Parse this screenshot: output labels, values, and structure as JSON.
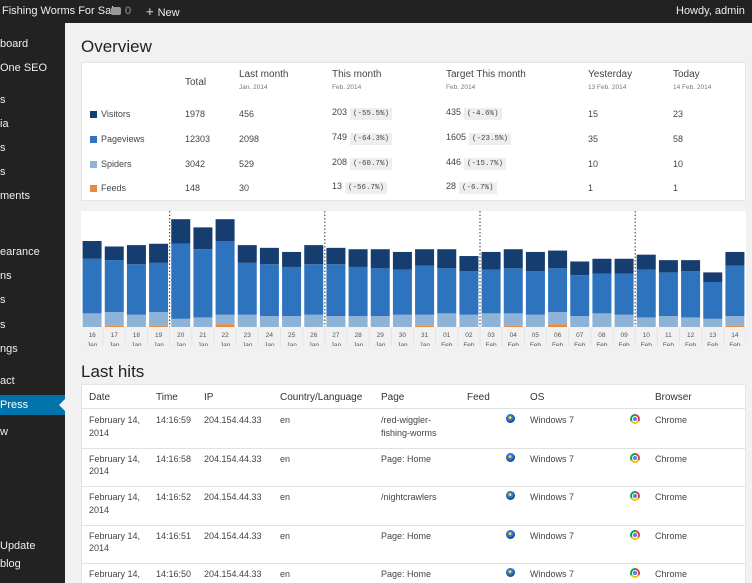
{
  "adminbar": {
    "site_name": "Fishing Worms For Sale",
    "comments_count": "0",
    "new_label": "New",
    "howdy": "Howdy, admin"
  },
  "sidebar": {
    "items": [
      "board",
      "One SEO",
      "s",
      "ia",
      "s",
      "s",
      "ments",
      "earance",
      "ns",
      "s",
      "s",
      "ngs",
      "act",
      "Press",
      "w",
      "Update",
      "blog"
    ]
  },
  "overview": {
    "title": "Overview",
    "columns": [
      {
        "label": "Total",
        "sub": ""
      },
      {
        "label": "Last month",
        "sub": "Jan. 2014"
      },
      {
        "label": "This month",
        "sub": "Feb. 2014"
      },
      {
        "label": "Target This month",
        "sub": "Feb. 2014"
      },
      {
        "label": "Yesterday",
        "sub": "13 Feb. 2014"
      },
      {
        "label": "Today",
        "sub": "14 Feb. 2014"
      }
    ],
    "rows": [
      {
        "label": "Visitors",
        "color": "#163d6f",
        "total": "1978",
        "last_month": "456",
        "this_month": "203",
        "this_pct": "(-55.5%)",
        "target": "435",
        "target_pct": "(-4.6%)",
        "yesterday": "15",
        "today": "23"
      },
      {
        "label": "Pageviews",
        "color": "#2d73bd",
        "total": "12303",
        "last_month": "2098",
        "this_month": "749",
        "this_pct": "(-64.3%)",
        "target": "1605",
        "target_pct": "(-23.5%)",
        "yesterday": "35",
        "today": "58"
      },
      {
        "label": "Spiders",
        "color": "#8fb3d7",
        "total": "3042",
        "last_month": "529",
        "this_month": "208",
        "this_pct": "(-60.7%)",
        "target": "446",
        "target_pct": "(-15.7%)",
        "yesterday": "10",
        "today": "10"
      },
      {
        "label": "Feeds",
        "color": "#e98b3a",
        "total": "148",
        "last_month": "30",
        "this_month": "13",
        "this_pct": "(-56.7%)",
        "target": "28",
        "target_pct": "(-6.7%)",
        "yesterday": "1",
        "today": "1"
      }
    ]
  },
  "chart_data": {
    "type": "bar",
    "stacked": true,
    "categories": [
      {
        "day": "16",
        "month": "Jan"
      },
      {
        "day": "17",
        "month": "Jan"
      },
      {
        "day": "18",
        "month": "Jan"
      },
      {
        "day": "19",
        "month": "Jan"
      },
      {
        "day": "20",
        "month": "Jan"
      },
      {
        "day": "21",
        "month": "Jan"
      },
      {
        "day": "22",
        "month": "Jan"
      },
      {
        "day": "23",
        "month": "Jan"
      },
      {
        "day": "24",
        "month": "Jan"
      },
      {
        "day": "25",
        "month": "Jan"
      },
      {
        "day": "26",
        "month": "Jan"
      },
      {
        "day": "27",
        "month": "Jan"
      },
      {
        "day": "28",
        "month": "Jan"
      },
      {
        "day": "29",
        "month": "Jan"
      },
      {
        "day": "30",
        "month": "Jan"
      },
      {
        "day": "31",
        "month": "Jan"
      },
      {
        "day": "01",
        "month": "Feb"
      },
      {
        "day": "02",
        "month": "Feb"
      },
      {
        "day": "03",
        "month": "Feb"
      },
      {
        "day": "04",
        "month": "Feb"
      },
      {
        "day": "05",
        "month": "Feb"
      },
      {
        "day": "06",
        "month": "Feb"
      },
      {
        "day": "07",
        "month": "Feb"
      },
      {
        "day": "08",
        "month": "Feb"
      },
      {
        "day": "09",
        "month": "Feb"
      },
      {
        "day": "10",
        "month": "Feb"
      },
      {
        "day": "11",
        "month": "Feb"
      },
      {
        "day": "12",
        "month": "Feb"
      },
      {
        "day": "13",
        "month": "Feb"
      },
      {
        "day": "14",
        "month": "Feb"
      }
    ],
    "series": [
      {
        "name": "Feeds",
        "color": "#e98b3a",
        "values": [
          0,
          1,
          0,
          1,
          0,
          0,
          2,
          0,
          0,
          0,
          0,
          0,
          0,
          0,
          0,
          1,
          0,
          0,
          0,
          1,
          0,
          2,
          0,
          0,
          0,
          0,
          0,
          0,
          0,
          1
        ]
      },
      {
        "name": "Spiders",
        "color": "#8fb3d7",
        "values": [
          10,
          10,
          9,
          10,
          6,
          7,
          7,
          9,
          8,
          8,
          9,
          8,
          8,
          8,
          9,
          8,
          10,
          9,
          10,
          9,
          9,
          9,
          8,
          10,
          9,
          7,
          8,
          7,
          6,
          7
        ]
      },
      {
        "name": "Pageviews",
        "color": "#2d73bd",
        "values": [
          40,
          38,
          37,
          36,
          55,
          50,
          54,
          38,
          38,
          36,
          37,
          38,
          36,
          35,
          33,
          36,
          33,
          32,
          32,
          33,
          32,
          32,
          30,
          29,
          30,
          35,
          32,
          34,
          27,
          37
        ]
      },
      {
        "name": "Visitors",
        "color": "#163d6f",
        "values": [
          13,
          10,
          14,
          14,
          18,
          16,
          16,
          13,
          12,
          11,
          14,
          12,
          13,
          14,
          13,
          12,
          14,
          11,
          13,
          14,
          14,
          13,
          10,
          11,
          11,
          11,
          9,
          8,
          7,
          10
        ]
      }
    ],
    "ylim": [
      0,
      85
    ],
    "month_separators_after": [
      "19 Jan",
      "26 Jan",
      "02 Feb",
      "09 Feb"
    ]
  },
  "hits": {
    "title": "Last hits",
    "columns": [
      "Date",
      "Time",
      "IP",
      "Country/Language",
      "Page",
      "Feed",
      "OS",
      "Browser"
    ],
    "rows": [
      {
        "date": [
          "February 14,",
          "2014"
        ],
        "time": "14:16:59",
        "ip": "204.154.44.33",
        "lang": "en",
        "page": [
          "/red-wiggler-",
          "fishing-worms"
        ],
        "os": "Windows 7",
        "browser": "Chrome"
      },
      {
        "date": [
          "February 14,",
          "2014"
        ],
        "time": "14:16:58",
        "ip": "204.154.44.33",
        "lang": "en",
        "page": [
          "Page: Home",
          ""
        ],
        "os": "Windows 7",
        "browser": "Chrome"
      },
      {
        "date": [
          "February 14,",
          "2014"
        ],
        "time": "14:16:52",
        "ip": "204.154.44.33",
        "lang": "en",
        "page": [
          "/nightcrawlers",
          ""
        ],
        "os": "Windows 7",
        "browser": "Chrome"
      },
      {
        "date": [
          "February 14,",
          "2014"
        ],
        "time": "14:16:51",
        "ip": "204.154.44.33",
        "lang": "en",
        "page": [
          "Page: Home",
          ""
        ],
        "os": "Windows 7",
        "browser": "Chrome"
      },
      {
        "date": [
          "February 14,",
          "2014"
        ],
        "time": "14:16:50",
        "ip": "204.154.44.33",
        "lang": "en",
        "page": [
          "Page: Home",
          ""
        ],
        "os": "Windows 7",
        "browser": "Chrome"
      }
    ]
  }
}
